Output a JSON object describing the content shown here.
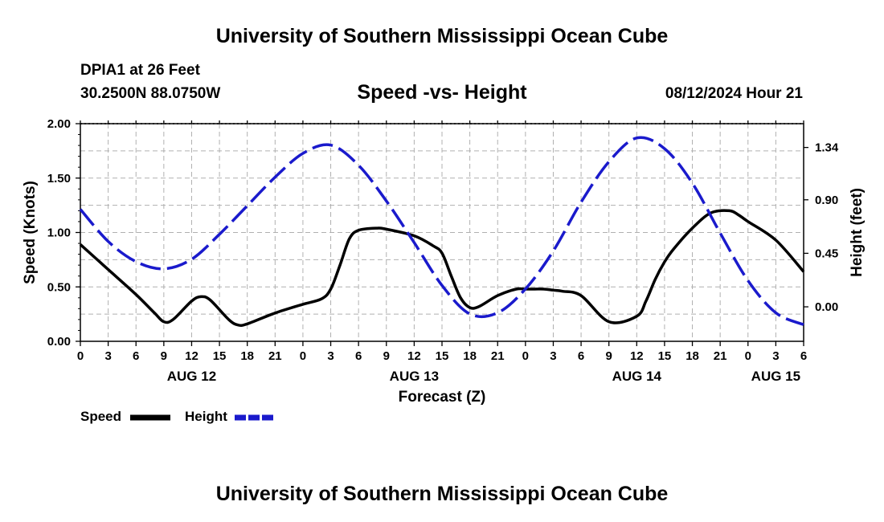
{
  "header": {
    "title": "University of Southern Mississippi Ocean Cube",
    "station": "DPIA1 at 26 Feet",
    "location": "30.2500N  88.0750W",
    "chart_title": "Speed -vs- Height",
    "datetime": "08/12/2024 Hour 21"
  },
  "footer": {
    "title": "University of Southern Mississippi Ocean Cube"
  },
  "legend": {
    "speed_label": "Speed",
    "height_label": "Height"
  },
  "colors": {
    "speed": "#000000",
    "height": "#1a1acc",
    "grid": "#b0b0b0"
  },
  "chart_data": {
    "type": "line",
    "title": "Speed -vs- Height",
    "xlabel": "Forecast (Z)",
    "ylabel": "Speed (Knots)",
    "y2label": "Height (feet)",
    "x_unit": "hours since Aug 12 00Z",
    "xlim": [
      0,
      78
    ],
    "ylim": [
      0,
      2.0
    ],
    "y2lim": [
      -0.29,
      1.54
    ],
    "x_ticks": [
      0,
      3,
      6,
      9,
      12,
      15,
      18,
      21,
      24,
      27,
      30,
      33,
      36,
      39,
      42,
      45,
      48,
      51,
      54,
      57,
      60,
      63,
      66,
      69,
      72,
      75,
      78
    ],
    "x_tick_labels": [
      "0",
      "3",
      "6",
      "9",
      "12",
      "15",
      "18",
      "21",
      "0",
      "3",
      "6",
      "9",
      "12",
      "15",
      "18",
      "21",
      "0",
      "3",
      "6",
      "9",
      "12",
      "15",
      "18",
      "21",
      "0",
      "3",
      "6"
    ],
    "day_labels": [
      {
        "x": 12,
        "label": "AUG 12"
      },
      {
        "x": 36,
        "label": "AUG 13"
      },
      {
        "x": 60,
        "label": "AUG 14"
      },
      {
        "x": 75,
        "label": "AUG 15"
      }
    ],
    "y_ticks": [
      0,
      0.5,
      1.0,
      1.5,
      2.0
    ],
    "y_tick_labels": [
      "0.00",
      "0.50",
      "1.00",
      "1.50",
      "2.00"
    ],
    "y2_ticks": [
      0.0,
      0.45,
      0.9,
      1.34
    ],
    "y2_tick_labels": [
      "0.00",
      "0.45",
      "0.90",
      "1.34"
    ],
    "series": [
      {
        "name": "Speed",
        "axis": "left",
        "style": "solid",
        "x": [
          0,
          3,
          6,
          8,
          9,
          10,
          12,
          13,
          14,
          16,
          17,
          18,
          21,
          24,
          26,
          27,
          28,
          29,
          30,
          32,
          33,
          36,
          38,
          39,
          40,
          41,
          42,
          43,
          45,
          47,
          48,
          49,
          50,
          51,
          52,
          54,
          57,
          60,
          61,
          62,
          63,
          64,
          66,
          68,
          70,
          71,
          72,
          75,
          78
        ],
        "values": [
          0.89,
          0.66,
          0.43,
          0.26,
          0.18,
          0.2,
          0.37,
          0.41,
          0.38,
          0.2,
          0.15,
          0.16,
          0.26,
          0.34,
          0.39,
          0.48,
          0.7,
          0.94,
          1.02,
          1.04,
          1.03,
          0.97,
          0.88,
          0.81,
          0.6,
          0.4,
          0.31,
          0.32,
          0.42,
          0.48,
          0.48,
          0.48,
          0.48,
          0.47,
          0.46,
          0.42,
          0.18,
          0.23,
          0.37,
          0.57,
          0.73,
          0.85,
          1.04,
          1.18,
          1.2,
          1.16,
          1.1,
          0.93,
          0.64
        ]
      },
      {
        "name": "Height",
        "axis": "right",
        "style": "dashed",
        "x": [
          0,
          3,
          6,
          9,
          12,
          15,
          18,
          21,
          24,
          27,
          30,
          33,
          36,
          39,
          42,
          45,
          48,
          51,
          54,
          57,
          60,
          63,
          66,
          69,
          72,
          75,
          78
        ],
        "values": [
          0.82,
          0.55,
          0.38,
          0.32,
          0.4,
          0.61,
          0.85,
          1.09,
          1.29,
          1.36,
          1.19,
          0.89,
          0.54,
          0.18,
          -0.06,
          -0.05,
          0.15,
          0.47,
          0.88,
          1.22,
          1.42,
          1.33,
          1.04,
          0.62,
          0.22,
          -0.05,
          -0.15
        ]
      }
    ]
  }
}
